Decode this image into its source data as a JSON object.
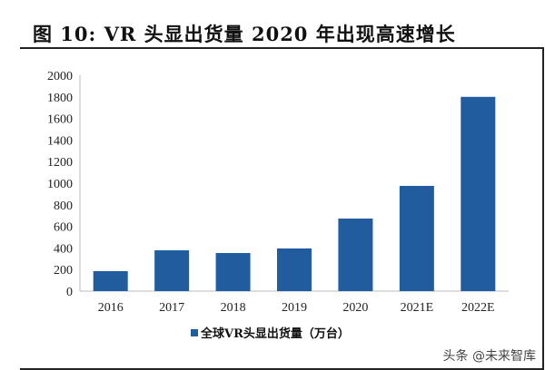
{
  "title": "图 10:  VR 头显出货量 2020 年出现高速增长",
  "watermark": "头条 @未来智库",
  "chart_data": {
    "type": "bar",
    "title": "",
    "xlabel": "",
    "ylabel": "",
    "categories": [
      "2016",
      "2017",
      "2018",
      "2019",
      "2020",
      "2021E",
      "2022E"
    ],
    "series": [
      {
        "name": "全球VR头显出货量（万台）",
        "values": [
          185,
          378,
          353,
          395,
          672,
          975,
          1800
        ],
        "color": "#215d9e"
      }
    ],
    "ylim": [
      0,
      2000
    ],
    "yticks": [
      0,
      200,
      400,
      600,
      800,
      1000,
      1200,
      1400,
      1600,
      1800,
      2000
    ],
    "grid": false,
    "legend": "bottom"
  }
}
